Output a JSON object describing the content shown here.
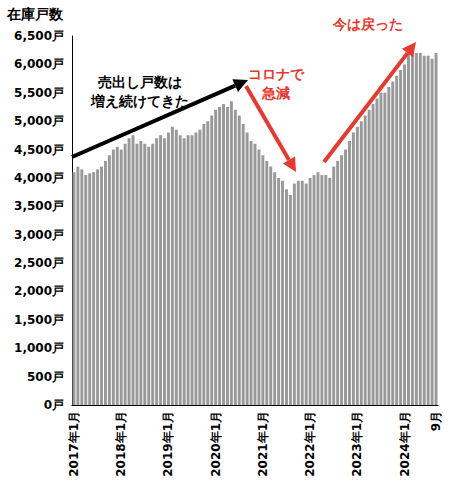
{
  "chart_data": {
    "type": "bar",
    "title": "在庫戸数",
    "categories": [
      "2017年1月",
      null,
      null,
      null,
      null,
      null,
      null,
      null,
      null,
      null,
      null,
      null,
      "2018年1月",
      null,
      null,
      null,
      null,
      null,
      null,
      null,
      null,
      null,
      null,
      null,
      "2019年1月",
      null,
      null,
      null,
      null,
      null,
      null,
      null,
      null,
      null,
      null,
      null,
      "2020年1月",
      null,
      null,
      null,
      null,
      null,
      null,
      null,
      null,
      null,
      null,
      null,
      "2021年1月",
      null,
      null,
      null,
      null,
      null,
      null,
      null,
      null,
      null,
      null,
      null,
      "2022年1月",
      null,
      null,
      null,
      null,
      null,
      null,
      null,
      null,
      null,
      null,
      null,
      "2023年1月",
      null,
      null,
      null,
      null,
      null,
      null,
      null,
      null,
      null,
      null,
      null,
      "2024年1月",
      null,
      null,
      null,
      null,
      null,
      null,
      null,
      "9月"
    ],
    "values": [
      4100,
      4200,
      4150,
      4050,
      4080,
      4100,
      4150,
      4200,
      4300,
      4400,
      4500,
      4550,
      4500,
      4600,
      4700,
      4750,
      4600,
      4650,
      4600,
      4550,
      4600,
      4700,
      4750,
      4700,
      4800,
      4900,
      4850,
      4750,
      4700,
      4750,
      4750,
      4800,
      4850,
      4950,
      5000,
      5100,
      5200,
      5250,
      5300,
      5250,
      5350,
      5200,
      5100,
      4950,
      4800,
      4650,
      4600,
      4500,
      4400,
      4300,
      4200,
      4100,
      4000,
      3950,
      3800,
      3700,
      3900,
      3950,
      3950,
      3900,
      4000,
      4050,
      4100,
      4050,
      4050,
      4000,
      4200,
      4300,
      4400,
      4500,
      4650,
      4800,
      4900,
      5000,
      5100,
      5200,
      5300,
      5400,
      5500,
      5500,
      5600,
      5700,
      5800,
      5900,
      6000,
      6200,
      6250,
      6200,
      6200,
      6150,
      6150,
      6100,
      6200
    ],
    "color": "#999999",
    "ylim": [
      0,
      6500
    ],
    "yticks": [
      {
        "value": 0,
        "label": "0戸"
      },
      {
        "value": 500,
        "label": "500戸"
      },
      {
        "value": 1000,
        "label": "1,000戸"
      },
      {
        "value": 1500,
        "label": "1,500戸"
      },
      {
        "value": 2000,
        "label": "2,000戸"
      },
      {
        "value": 2500,
        "label": "2,500戸"
      },
      {
        "value": 3000,
        "label": "3,000戸"
      },
      {
        "value": 3500,
        "label": "3,500戸"
      },
      {
        "value": 4000,
        "label": "4,000戸"
      },
      {
        "value": 4500,
        "label": "4,500戸"
      },
      {
        "value": 5000,
        "label": "5,000戸"
      },
      {
        "value": 5500,
        "label": "5,500戸"
      },
      {
        "value": 6000,
        "label": "6,000戸"
      },
      {
        "value": 6500,
        "label": "6,500戸"
      }
    ],
    "grid": false,
    "annotations": [
      {
        "text": "売出し戸数は\n増え続けてきた",
        "color": "#000000"
      },
      {
        "text": "コロナで\n急減",
        "color": "#e8392f"
      },
      {
        "text": "今は戻った",
        "color": "#e8392f"
      }
    ]
  }
}
